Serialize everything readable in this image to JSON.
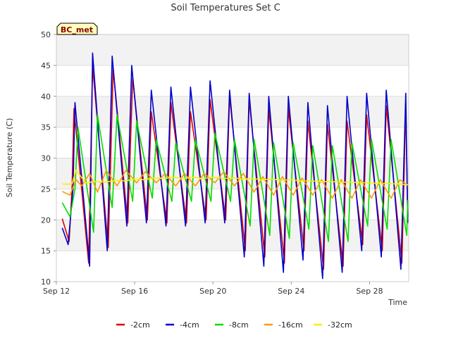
{
  "chart_data": {
    "type": "line",
    "title": "Soil Temperatures Set C",
    "xlabel": "Time",
    "ylabel": "Soil Temperature (C)",
    "site_label": "BC_met",
    "x_start": "Sep 12",
    "x_end": "Sep 30",
    "x_range_days": [
      12.0,
      30.0
    ],
    "ylim": [
      10,
      50
    ],
    "yticks": [
      10,
      15,
      20,
      25,
      30,
      35,
      40,
      45,
      50
    ],
    "xticks": [
      {
        "day": 12,
        "label": "Sep 12"
      },
      {
        "day": 16,
        "label": "Sep 16"
      },
      {
        "day": 20,
        "label": "Sep 20"
      },
      {
        "day": 24,
        "label": "Sep 24"
      },
      {
        "day": 28,
        "label": "Sep 28"
      }
    ],
    "grid": true,
    "legend_position": "bottom",
    "series": [
      {
        "name": "-2cm",
        "color": "#dd0000",
        "x": [
          12.3,
          12.65,
          12.8,
          12.9,
          13.65,
          13.85,
          14.65,
          14.9,
          15.65,
          15.9,
          16.65,
          16.85,
          17.65,
          17.85,
          18.65,
          18.85,
          19.65,
          19.85,
          20.65,
          20.85,
          21.65,
          21.85,
          22.65,
          22.85,
          23.65,
          23.85,
          24.65,
          24.85,
          25.65,
          25.85,
          26.65,
          26.85,
          27.65,
          27.85,
          28.65,
          28.85,
          29.65,
          29.85,
          29.95
        ],
        "y": [
          20.2,
          16.5,
          25.0,
          38.0,
          13.0,
          45.0,
          15.5,
          44.5,
          19.5,
          43.0,
          20.0,
          37.5,
          19.5,
          39.0,
          19.5,
          37.5,
          20.0,
          39.5,
          20.0,
          40.0,
          15.0,
          39.5,
          14.0,
          38.0,
          13.0,
          38.0,
          15.0,
          36.0,
          12.0,
          35.5,
          12.5,
          36.0,
          16.0,
          37.0,
          15.0,
          38.5,
          13.0,
          38.5,
          20.5
        ]
      },
      {
        "name": "-4cm",
        "color": "#0000cc",
        "x": [
          12.3,
          12.6,
          12.85,
          12.95,
          13.7,
          13.85,
          14.6,
          14.85,
          15.6,
          15.85,
          16.6,
          16.85,
          17.6,
          17.85,
          18.6,
          18.85,
          19.6,
          19.85,
          20.6,
          20.85,
          21.6,
          21.85,
          22.6,
          22.85,
          23.6,
          23.85,
          24.6,
          24.85,
          25.6,
          25.85,
          26.6,
          26.85,
          27.6,
          27.85,
          28.6,
          28.85,
          29.6,
          29.85,
          29.95
        ],
        "y": [
          18.7,
          16.0,
          25.0,
          39.0,
          12.5,
          47.0,
          15.0,
          46.5,
          19.0,
          45.0,
          19.5,
          41.0,
          19.0,
          41.5,
          19.0,
          41.5,
          19.5,
          42.5,
          19.5,
          41.0,
          14.0,
          40.5,
          12.5,
          40.0,
          11.5,
          40.0,
          13.5,
          39.0,
          10.5,
          38.5,
          11.5,
          40.0,
          15.0,
          40.5,
          14.0,
          41.0,
          12.0,
          40.5,
          19.5
        ]
      },
      {
        "name": "-8cm",
        "color": "#00dd00",
        "x": [
          12.3,
          12.7,
          12.95,
          13.1,
          13.9,
          14.1,
          14.85,
          15.1,
          15.9,
          16.1,
          16.9,
          17.1,
          17.9,
          18.1,
          18.9,
          19.1,
          19.9,
          20.1,
          20.9,
          21.1,
          21.9,
          22.1,
          22.9,
          23.1,
          23.9,
          24.1,
          24.9,
          25.1,
          25.9,
          26.1,
          26.9,
          27.1,
          27.9,
          28.1,
          28.9,
          29.1,
          29.9,
          29.95
        ],
        "y": [
          22.8,
          20.5,
          25.0,
          35.0,
          18.0,
          37.0,
          22.0,
          37.0,
          23.0,
          36.0,
          23.5,
          33.0,
          23.0,
          32.5,
          23.0,
          33.0,
          23.0,
          34.0,
          23.0,
          33.0,
          19.0,
          33.0,
          17.5,
          32.5,
          17.0,
          32.5,
          18.5,
          32.0,
          16.5,
          32.0,
          16.5,
          32.5,
          19.0,
          33.0,
          18.5,
          33.0,
          17.5,
          23.2
        ]
      },
      {
        "name": "-16cm",
        "color": "#ff9900",
        "x": [
          12.3,
          12.7,
          13.0,
          13.3,
          13.7,
          14.1,
          14.55,
          15.1,
          15.55,
          16.1,
          16.55,
          17.1,
          17.55,
          18.1,
          18.55,
          19.1,
          19.55,
          20.1,
          20.55,
          21.1,
          21.55,
          22.1,
          22.55,
          23.1,
          23.55,
          24.1,
          24.55,
          25.1,
          25.55,
          26.1,
          26.55,
          27.1,
          27.55,
          28.1,
          28.55,
          29.1,
          29.55,
          29.95
        ],
        "y": [
          24.6,
          24.0,
          26.5,
          25.5,
          27.5,
          24.5,
          28.0,
          25.5,
          28.0,
          26.0,
          27.8,
          26.0,
          27.5,
          25.5,
          27.5,
          25.5,
          27.5,
          26.0,
          27.8,
          25.5,
          27.5,
          24.5,
          27.0,
          24.0,
          27.0,
          24.0,
          26.8,
          24.0,
          26.5,
          23.5,
          26.5,
          23.5,
          26.5,
          23.5,
          26.5,
          23.5,
          26.5,
          25.6
        ]
      },
      {
        "name": "-32cm",
        "color": "#ffee00",
        "x": [
          12.3,
          12.8,
          13.0,
          13.5,
          14.0,
          14.5,
          15.0,
          15.5,
          16.0,
          16.5,
          17.0,
          17.5,
          18.0,
          18.5,
          19.0,
          19.5,
          20.0,
          20.5,
          21.0,
          21.5,
          22.0,
          22.5,
          23.0,
          23.5,
          24.0,
          24.5,
          25.0,
          25.5,
          26.0,
          26.5,
          27.0,
          27.5,
          28.0,
          28.5,
          29.0,
          29.5,
          29.95
        ],
        "y": [
          25.8,
          25.8,
          28.0,
          26.0,
          26.2,
          26.1,
          26.4,
          26.3,
          26.6,
          26.5,
          26.8,
          26.7,
          26.9,
          26.7,
          26.9,
          26.7,
          26.9,
          26.7,
          26.8,
          26.6,
          26.7,
          26.5,
          26.6,
          26.4,
          26.5,
          26.3,
          26.3,
          26.2,
          26.2,
          26.1,
          26.1,
          26.0,
          26.0,
          25.9,
          25.9,
          25.8,
          25.7
        ]
      }
    ]
  }
}
